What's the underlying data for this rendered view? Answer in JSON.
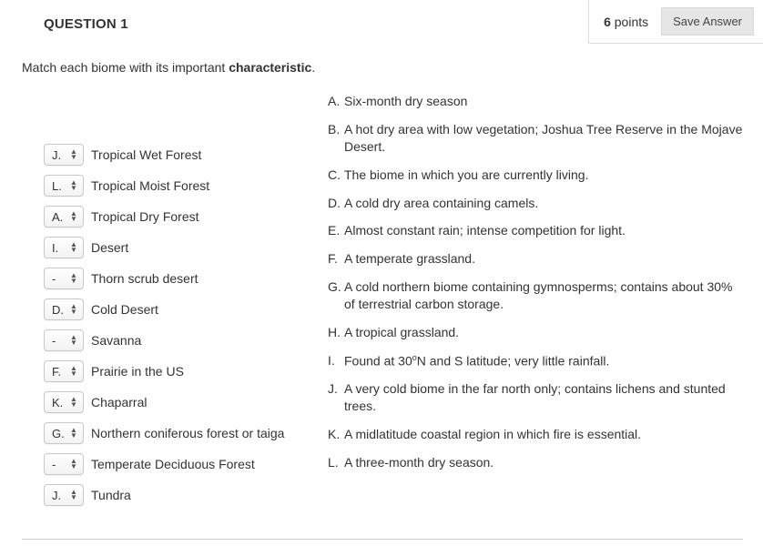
{
  "header": {
    "question_label": "QUESTION 1",
    "points_value": "6",
    "points_word": "points",
    "save_button": "Save Answer"
  },
  "prompt_pre": "Match each biome with its important ",
  "prompt_bold": "characteristic",
  "prompt_post": ".",
  "matches": [
    {
      "sel": "J.",
      "label": "Tropical Wet Forest"
    },
    {
      "sel": "L.",
      "label": "Tropical Moist Forest"
    },
    {
      "sel": "A.",
      "label": "Tropical Dry Forest"
    },
    {
      "sel": "I.",
      "label": "Desert"
    },
    {
      "sel": "-",
      "label": "Thorn scrub desert"
    },
    {
      "sel": "D.",
      "label": "Cold Desert"
    },
    {
      "sel": "-",
      "label": "Savanna"
    },
    {
      "sel": "F.",
      "label": "Prairie in the US"
    },
    {
      "sel": "K.",
      "label": "Chaparral"
    },
    {
      "sel": "G.",
      "label": "Northern coniferous forest or taiga"
    },
    {
      "sel": "-",
      "label": "Temperate Deciduous Forest"
    },
    {
      "sel": "J.",
      "label": "Tundra"
    }
  ],
  "answers": [
    {
      "letter": "A.",
      "text": "Six-month dry season"
    },
    {
      "letter": "B.",
      "text": "A hot dry area with low vegetation; Joshua Tree Reserve in the Mojave Desert."
    },
    {
      "letter": "C.",
      "text": "The biome in which you are currently living."
    },
    {
      "letter": "D.",
      "text": "A cold dry area containing camels."
    },
    {
      "letter": "E.",
      "text": "Almost constant rain; intense competition for light."
    },
    {
      "letter": "F.",
      "text": "A temperate grassland."
    },
    {
      "letter": "G.",
      "text": "A cold northern biome containing gymnosperms; contains about 30% of terrestrial carbon storage."
    },
    {
      "letter": "H.",
      "text": "A tropical grassland."
    },
    {
      "letter": "I.",
      "text_html": "Found at 30<sup>o</sup>N and S latitude; very little rainfall."
    },
    {
      "letter": "J.",
      "text": "A very cold biome in the far north only; contains lichens and stunted trees."
    },
    {
      "letter": "K.",
      "text": "A midlatitude coastal region in which fire is essential."
    },
    {
      "letter": "L.",
      "text": "A three-month dry season."
    }
  ]
}
